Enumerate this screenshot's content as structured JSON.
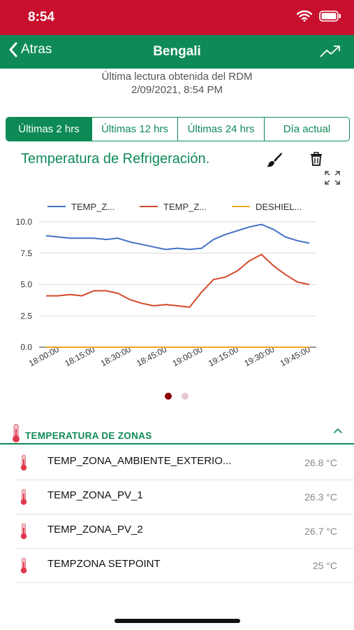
{
  "status_bar": {
    "time": "8:54"
  },
  "nav": {
    "back_label": "Atras",
    "title": "Bengali"
  },
  "reading": {
    "line1": "Última lectura obtenida del RDM",
    "line2": "2/09/2021, 8:54 PM"
  },
  "tabs": [
    {
      "label": "Últimas 2 hrs",
      "active": true
    },
    {
      "label": "Últimas 12 hrs",
      "active": false
    },
    {
      "label": "Últimas 24 hrs",
      "active": false
    },
    {
      "label": "Día actual",
      "active": false
    }
  ],
  "chart_title": "Temperatura de Refrigeración.",
  "icons": {
    "brush": "brush-icon",
    "trash": "trash-icon",
    "expand": "expand-icon",
    "thermometer": "thermometer-icon",
    "trend": "trend-icon"
  },
  "chart_data": {
    "type": "line",
    "x": [
      "18:00:00",
      "18:05:00",
      "18:10:00",
      "18:15:00",
      "18:20:00",
      "18:25:00",
      "18:30:00",
      "18:35:00",
      "18:40:00",
      "18:45:00",
      "18:50:00",
      "18:55:00",
      "19:00:00",
      "19:05:00",
      "19:10:00",
      "19:15:00",
      "19:20:00",
      "19:25:00",
      "19:30:00",
      "19:35:00",
      "19:40:00",
      "19:45:00",
      "19:50:00"
    ],
    "xtick_labels": [
      "18:00:00",
      "18:15:00",
      "18:30:00",
      "18:45:00",
      "19:00:00",
      "19:15:00",
      "19:30:00",
      "19:45:00"
    ],
    "ylim": [
      0,
      10
    ],
    "yticks": [
      "0.0",
      "2.5",
      "5.0",
      "7.5",
      "10.0"
    ],
    "grid": true,
    "legend_position": "top",
    "series": [
      {
        "name": "TEMP_Z...",
        "color": "#4472c4",
        "values": [
          8.9,
          8.8,
          8.7,
          8.7,
          8.7,
          8.6,
          8.7,
          8.4,
          8.2,
          8.0,
          7.8,
          7.9,
          7.8,
          7.9,
          8.6,
          9.0,
          9.3,
          9.6,
          9.8,
          9.4,
          8.8,
          8.5,
          8.3
        ]
      },
      {
        "name": "TEMP_Z...",
        "color": "#d4492a",
        "values": [
          4.1,
          4.1,
          4.2,
          4.1,
          4.5,
          4.5,
          4.3,
          3.8,
          3.5,
          3.3,
          3.4,
          3.3,
          3.2,
          4.4,
          5.4,
          5.6,
          6.1,
          6.9,
          7.4,
          6.5,
          5.8,
          5.2,
          5.0
        ]
      },
      {
        "name": "DESHIEL...",
        "color": "#f5a623",
        "values": [
          0,
          0,
          0,
          0,
          0,
          0,
          0,
          0,
          0,
          0,
          0,
          0,
          0,
          0,
          0,
          0,
          0,
          0,
          0,
          0,
          0,
          0,
          0
        ]
      }
    ]
  },
  "section": {
    "title": "TEMPERATURA DE ZONAS"
  },
  "zones": [
    {
      "name": "TEMP_ZONA_AMBIENTE_EXTERIO...",
      "value": "26.8 °C"
    },
    {
      "name": "TEMP_ZONA_PV_1",
      "value": "26.3 °C"
    },
    {
      "name": "TEMP_ZONA_PV_2",
      "value": "26.7 °C"
    },
    {
      "name": "TEMPZONA SETPOINT",
      "value": "25 °C"
    }
  ]
}
